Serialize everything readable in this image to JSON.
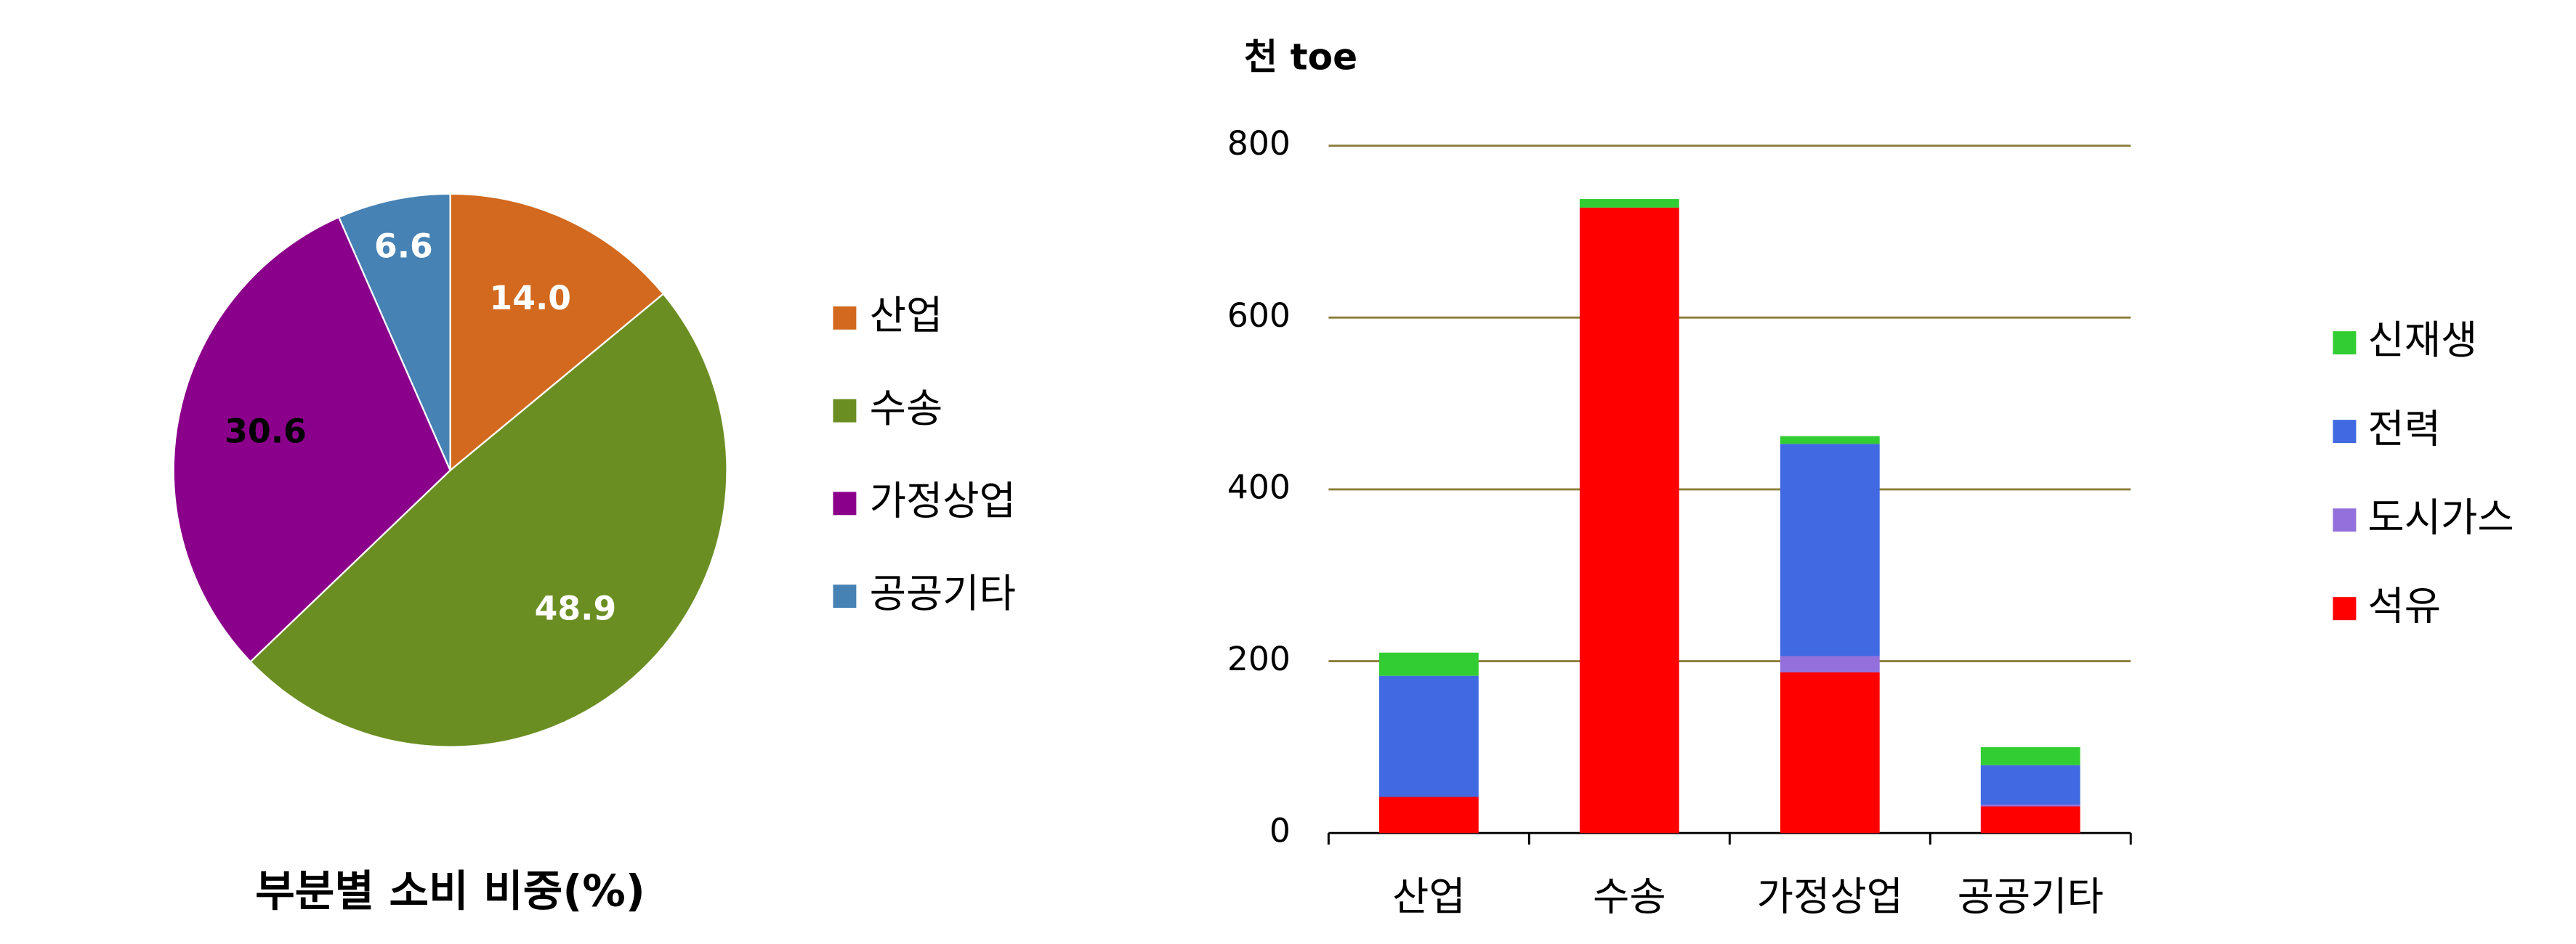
{
  "chart_data": [
    {
      "type": "pie",
      "title": "부분별 소비 비중(%)",
      "categories": [
        "산업",
        "수송",
        "가정상업",
        "공공기타"
      ],
      "values": [
        14.0,
        48.9,
        30.6,
        6.6
      ],
      "value_labels": [
        "14.0",
        "48.9",
        "30.6",
        "6.6"
      ],
      "colors": [
        "#d2691e",
        "#6b8e23",
        "#8b008b",
        "#4682b4"
      ]
    },
    {
      "type": "bar",
      "stacked": true,
      "ylabel": "천 toe",
      "categories": [
        "산업",
        "수송",
        "가정상업",
        "공공기타"
      ],
      "series": [
        {
          "name": "석유",
          "color": "#ff0000",
          "values": [
            42,
            728,
            187,
            31
          ]
        },
        {
          "name": "도시가스",
          "color": "#9370db",
          "values": [
            0,
            0,
            19,
            2
          ]
        },
        {
          "name": "전력",
          "color": "#4169e1",
          "values": [
            141,
            0,
            247,
            46
          ]
        },
        {
          "name": "신재생",
          "color": "#32cd32",
          "values": [
            27,
            10,
            9,
            21
          ]
        }
      ],
      "ylim": [
        0,
        800
      ],
      "yticks": [
        0,
        200,
        400,
        600,
        800
      ],
      "grid": true
    }
  ]
}
